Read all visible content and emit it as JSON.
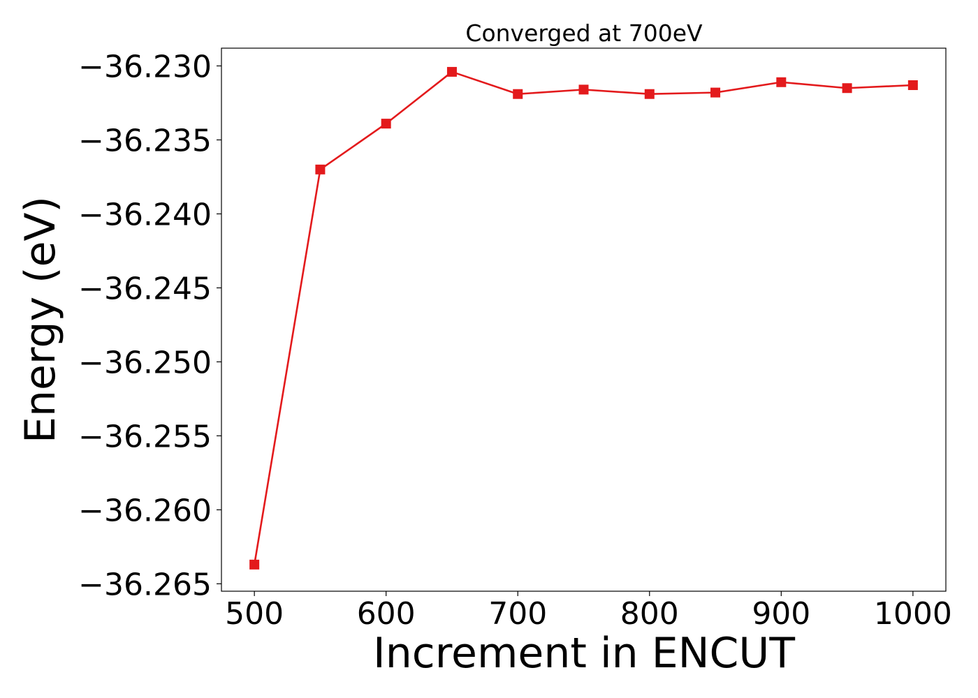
{
  "chart_data": {
    "type": "line",
    "title": "Converged at 700eV",
    "xlabel": "Increment in ENCUT",
    "ylabel": "Energy (eV)",
    "xlim": [
      475,
      1025
    ],
    "ylim": [
      -36.2655,
      -36.2288
    ],
    "xticks": [
      500,
      600,
      700,
      800,
      900,
      1000
    ],
    "xtick_labels": [
      "500",
      "600",
      "700",
      "800",
      "900",
      "1000"
    ],
    "yticks": [
      -36.265,
      -36.26,
      -36.255,
      -36.25,
      -36.245,
      -36.24,
      -36.235,
      -36.23
    ],
    "ytick_labels": [
      "−36.265",
      "−36.260",
      "−36.255",
      "−36.250",
      "−36.245",
      "−36.240",
      "−36.235",
      "−36.230"
    ],
    "grid": false,
    "series": [
      {
        "color": "#e31a1c",
        "marker": "square",
        "x": [
          500,
          550,
          600,
          650,
          700,
          750,
          800,
          850,
          900,
          950,
          1000
        ],
        "y": [
          -36.2637,
          -36.237,
          -36.2339,
          -36.2304,
          -36.2319,
          -36.2316,
          -36.2319,
          -36.2318,
          -36.2311,
          -36.2315,
          -36.2313
        ]
      }
    ]
  }
}
